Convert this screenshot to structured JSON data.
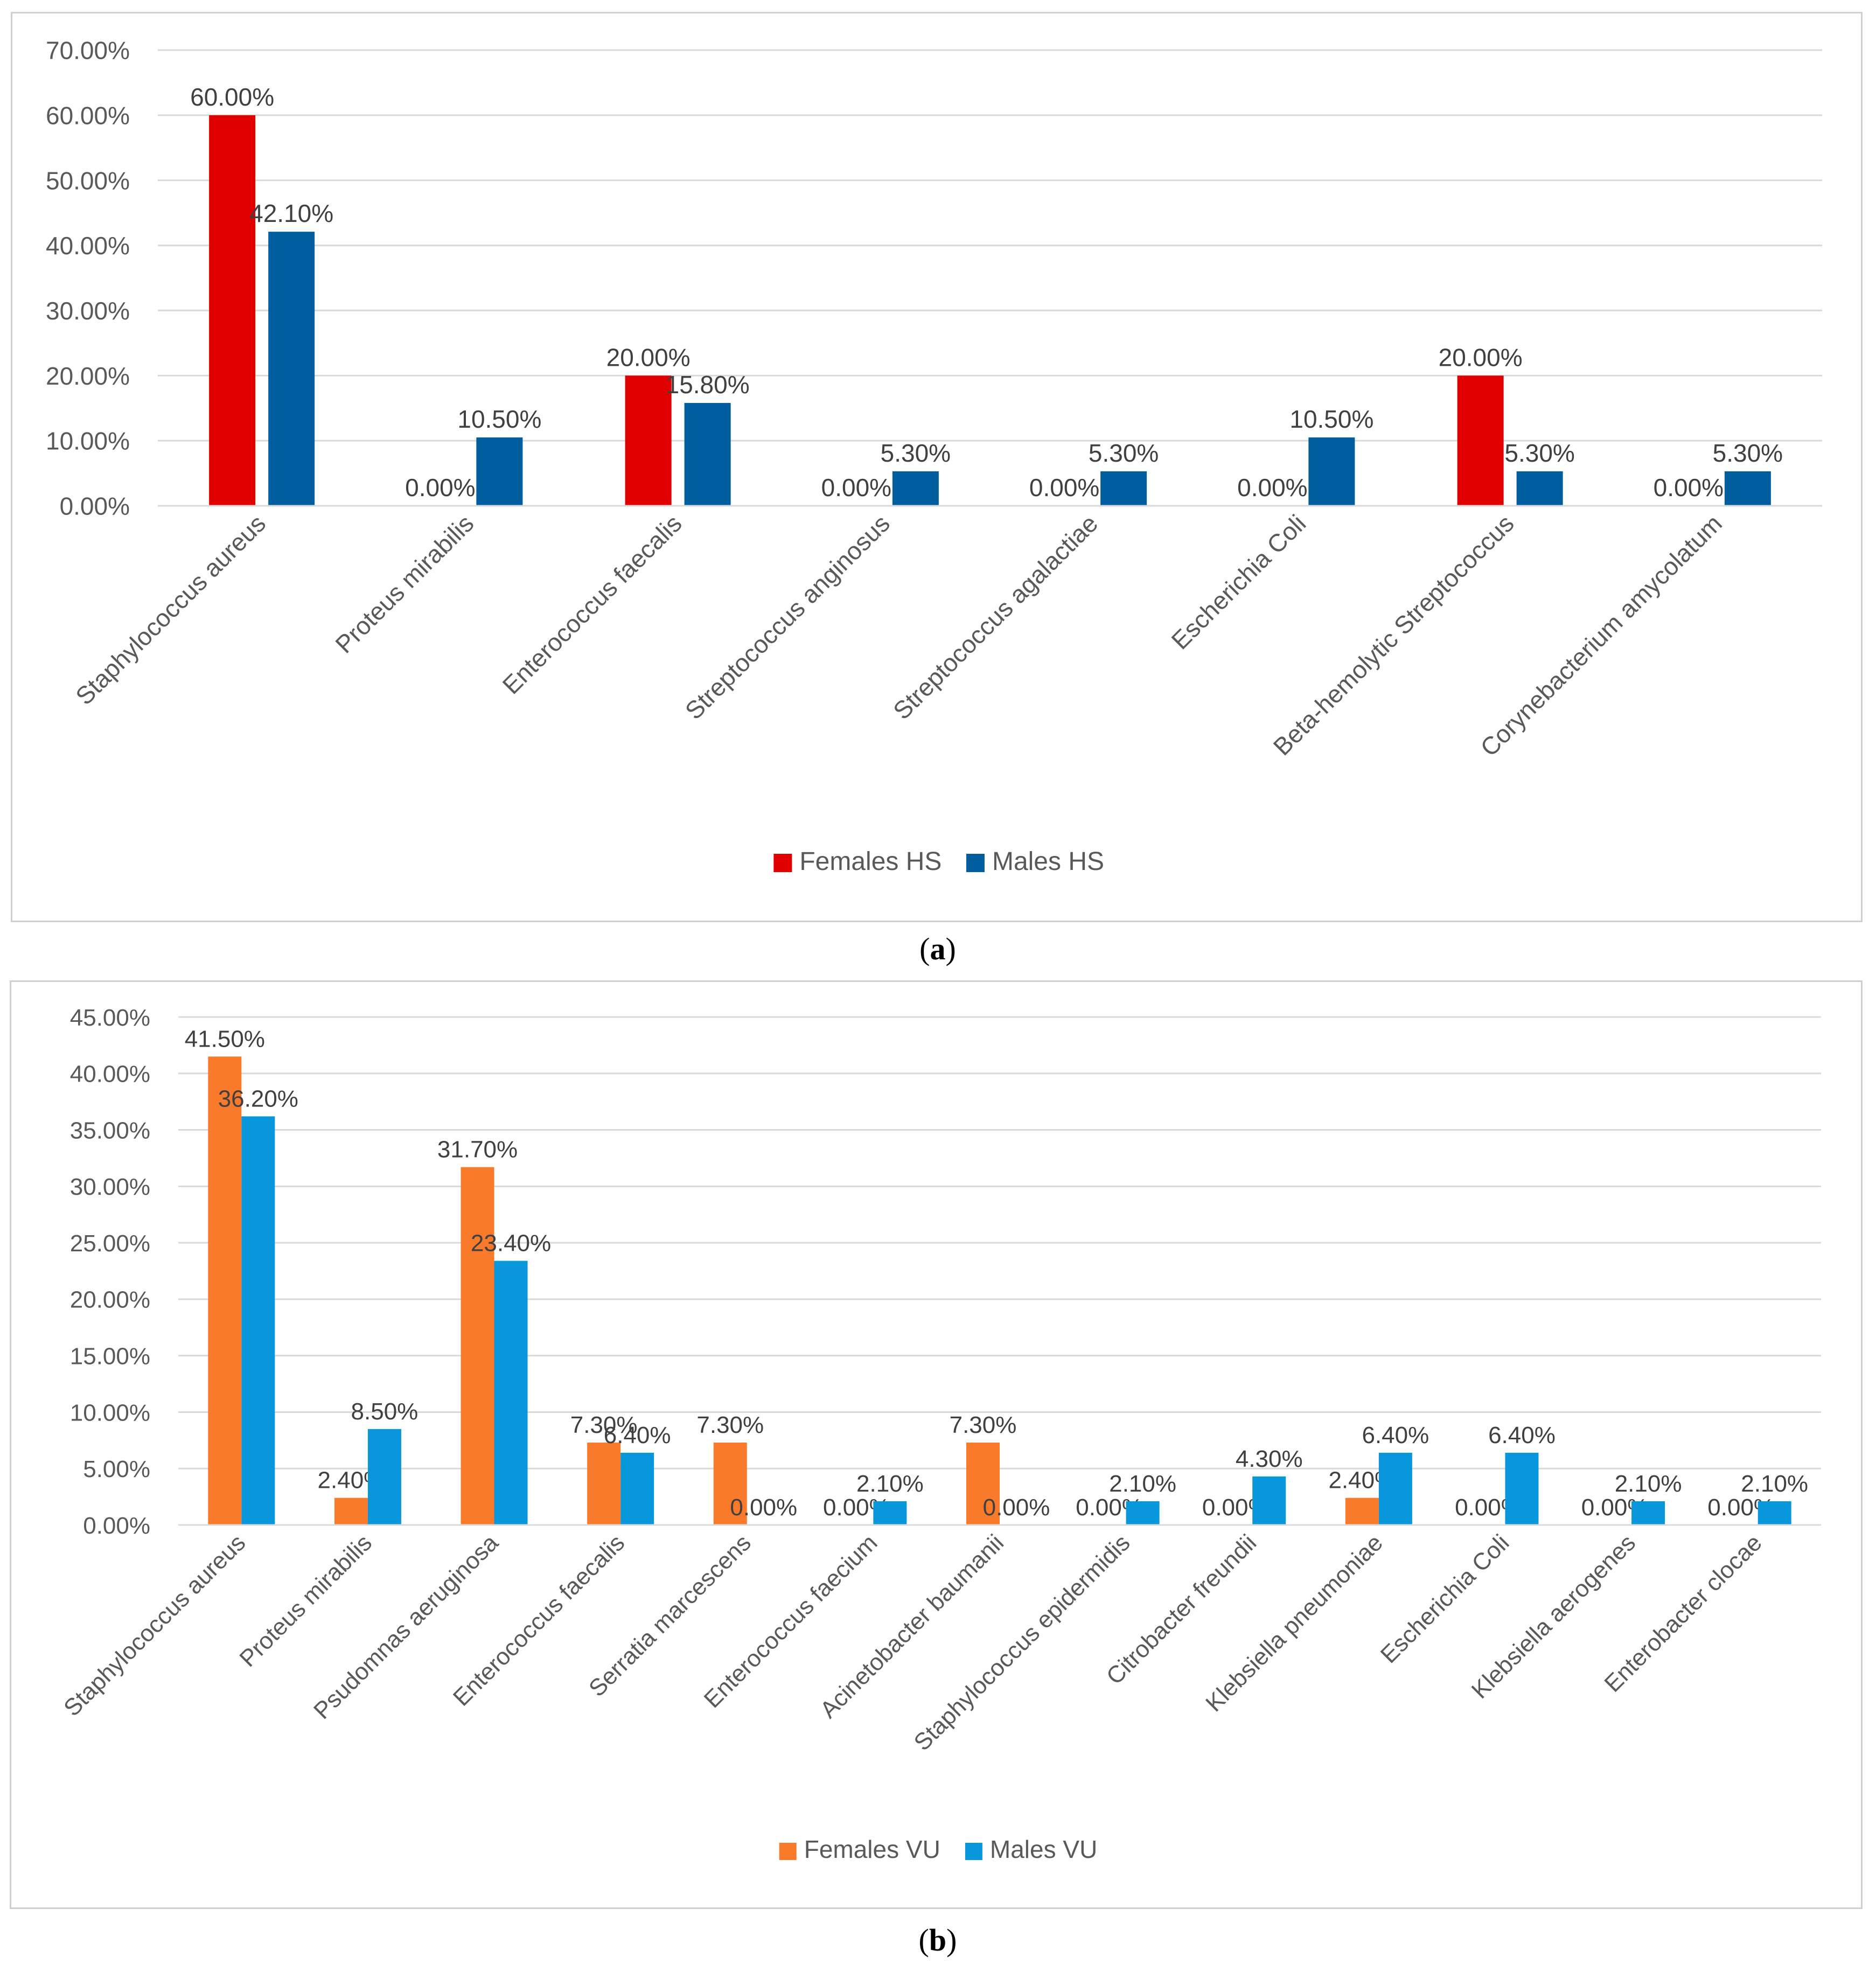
{
  "captions": {
    "a": {
      "open": "(",
      "letter": "a",
      "close": ")"
    },
    "b": {
      "open": "(",
      "letter": "b",
      "close": ")"
    }
  },
  "chart_data": [
    {
      "id": "a",
      "type": "bar",
      "title": "",
      "xlabel": "",
      "ylabel": "",
      "ylim": [
        0,
        70
      ],
      "ytick_step": 10,
      "ytick_labels": [
        "0.00%",
        "10.00%",
        "20.00%",
        "30.00%",
        "40.00%",
        "50.00%",
        "60.00%",
        "70.00%"
      ],
      "grid": true,
      "legend_position": "bottom",
      "categories": [
        "Staphylococcus aureus",
        "Proteus mirabilis",
        "Enterococcus faecalis",
        "Streptococcus anginosus",
        "Streptococcus agalactiae",
        "Escherichia Coli",
        "Beta-hemolytic Streptococcus",
        "Corynebacterium amycolatum"
      ],
      "series": [
        {
          "name": "Females HS",
          "color": "#e00000",
          "values": [
            60.0,
            0.0,
            20.0,
            0.0,
            0.0,
            0.0,
            20.0,
            0.0
          ],
          "labels": [
            "60.00%",
            "0.00%",
            "20.00%",
            "0.00%",
            "0.00%",
            "0.00%",
            "20.00%",
            "0.00%"
          ]
        },
        {
          "name": "Males HS",
          "color": "#005e9e",
          "values": [
            42.1,
            10.5,
            15.8,
            5.3,
            5.3,
            10.5,
            5.3,
            5.3
          ],
          "labels": [
            "42.10%",
            "10.50%",
            "15.80%",
            "5.30%",
            "5.30%",
            "10.50%",
            "5.30%",
            "5.30%"
          ]
        }
      ]
    },
    {
      "id": "b",
      "type": "bar",
      "title": "",
      "xlabel": "",
      "ylabel": "",
      "ylim": [
        0,
        45
      ],
      "ytick_step": 5,
      "ytick_labels": [
        "0.00%",
        "5.00%",
        "10.00%",
        "15.00%",
        "20.00%",
        "25.00%",
        "30.00%",
        "35.00%",
        "40.00%",
        "45.00%"
      ],
      "grid": true,
      "legend_position": "bottom",
      "categories": [
        "Staphylococcus aureus",
        "Proteus mirabilis",
        "Psudomnas aeruginosa",
        "Enterococcus faecalis",
        "Serratia marcescens",
        "Enterococcus faecium",
        "Acinetobacter baumanii",
        "Staphylococcus epidermidis",
        "Citrobacter freundii",
        "Klebsiella pneumoniae",
        "Escherichia Coli",
        "Klebsiella aerogenes",
        "Enterobacter clocae"
      ],
      "series": [
        {
          "name": "Females VU",
          "color": "#f97a2a",
          "values": [
            41.5,
            2.4,
            31.7,
            7.3,
            7.3,
            0.0,
            7.3,
            0.0,
            0.0,
            2.4,
            0.0,
            0.0,
            0.0
          ],
          "labels": [
            "41.50%",
            "2.40%",
            "31.70%",
            "7.30%",
            "7.30%",
            "0.00%",
            "7.30%",
            "0.00%",
            "0.00%",
            "2.40%",
            "0.00%",
            "0.00%",
            "0.00%"
          ]
        },
        {
          "name": "Males VU",
          "color": "#0897da",
          "values": [
            36.2,
            8.5,
            23.4,
            6.4,
            0.0,
            2.1,
            0.0,
            2.1,
            4.3,
            6.4,
            6.4,
            2.1,
            2.1
          ],
          "labels": [
            "36.20%",
            "8.50%",
            "23.40%",
            "6.40%",
            "0.00%",
            "2.10%",
            "0.00%",
            "2.10%",
            "4.30%",
            "6.40%",
            "6.40%",
            "2.10%",
            "2.10%"
          ]
        }
      ]
    }
  ]
}
